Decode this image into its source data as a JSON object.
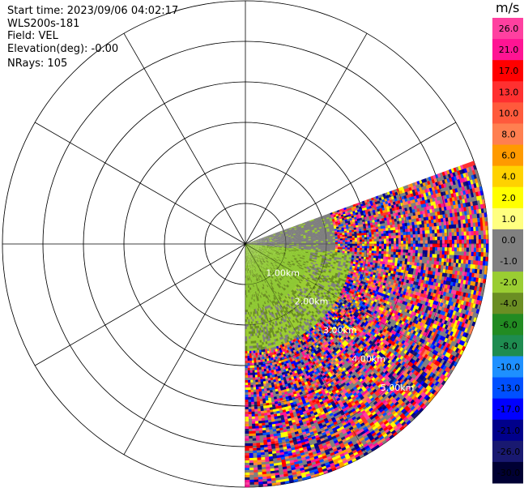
{
  "info": {
    "start_time": "Start time: 2023/09/06 04:02:17",
    "instrument": "WLS200s-181",
    "field": "Field: VEL",
    "elevation": "Elevation(deg): -0.00",
    "nrays": "NRays: 105"
  },
  "ring_labels": [
    "1.00km",
    "2.00km",
    "3.00km",
    "4.00km",
    "5.00km"
  ],
  "colorbar": {
    "unit": "m/s",
    "ticks": [
      "26.0",
      "21.0",
      "17.0",
      "13.0",
      "10.0",
      "8.0",
      "6.0",
      "4.0",
      "2.0",
      "1.0",
      "0.0",
      "-1.0",
      "-2.0",
      "-4.0",
      "-6.0",
      "-8.0",
      "-10.0",
      "-13.0",
      "-17.0",
      "-21.0",
      "-26.0",
      "-30.0"
    ],
    "colors": [
      "#ff40a0",
      "#ff1493",
      "#ff0000",
      "#ff3030",
      "#ff5a3c",
      "#ff7f50",
      "#ff9a00",
      "#ffd200",
      "#ffff00",
      "#ffff80",
      "#808080",
      "#808080",
      "#9acd32",
      "#6b8e23",
      "#228b22",
      "#1e8c50",
      "#1e90ff",
      "#0050ff",
      "#0000ff",
      "#00008b",
      "#191970",
      "#000033"
    ]
  },
  "colors": {
    "background": "#ffffff",
    "grid": "#000000",
    "near_gray": "#7f7f7f",
    "near_green": "#8ec832"
  }
}
